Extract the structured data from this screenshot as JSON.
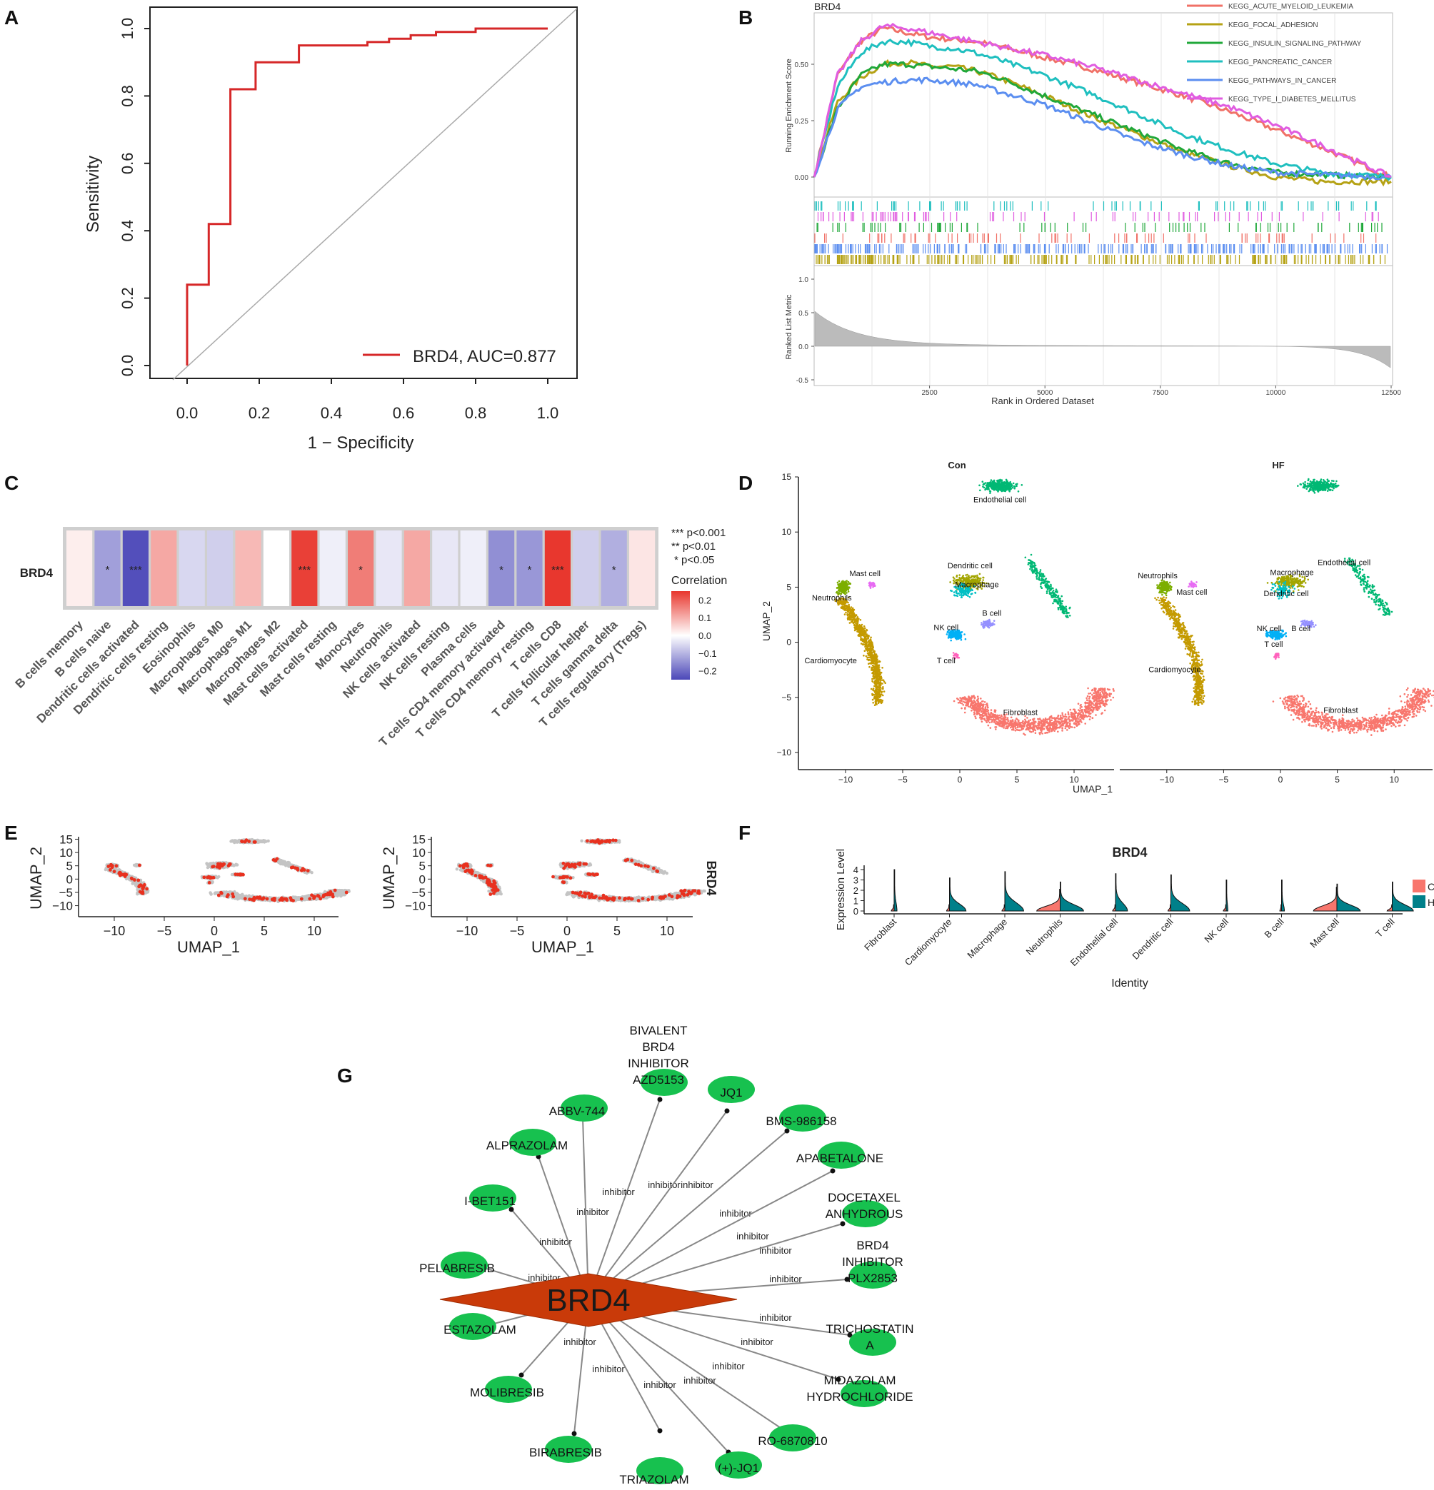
{
  "panels": {
    "A": "A",
    "B": "B",
    "C": "C",
    "D": "D",
    "E": "E",
    "F": "F",
    "G": "G"
  },
  "chart_data": [
    {
      "id": "A",
      "type": "line",
      "xlabel": "1 − Specificity",
      "ylabel": "Sensitivity",
      "xlim": [
        0,
        1
      ],
      "ylim": [
        0,
        1
      ],
      "xticks": [
        "0.0",
        "0.2",
        "0.4",
        "0.6",
        "0.8",
        "1.0"
      ],
      "yticks": [
        "0.0",
        "0.2",
        "0.4",
        "0.6",
        "0.8",
        "1.0"
      ],
      "legend": "BRD4, AUC=0.877",
      "legend_position": "bottom-right",
      "line_color": "#d62728",
      "x": [
        0,
        0,
        0.06,
        0.06,
        0.12,
        0.12,
        0.19,
        0.19,
        0.31,
        0.31,
        0.4,
        0.4,
        0.5,
        0.5,
        0.56,
        0.56,
        0.62,
        0.62,
        0.69,
        0.69,
        0.8,
        0.8,
        1.0
      ],
      "y": [
        0,
        0.24,
        0.24,
        0.42,
        0.42,
        0.82,
        0.82,
        0.9,
        0.9,
        0.95,
        0.95,
        0.95,
        0.95,
        0.96,
        0.96,
        0.97,
        0.97,
        0.98,
        0.98,
        0.99,
        0.99,
        1.0,
        1.0
      ]
    },
    {
      "id": "B",
      "type": "line",
      "title": "BRD4",
      "xlabel": "Rank in Ordered Dataset",
      "ylabel": "Running Enrichment Score",
      "ylabel2": "Ranked List Metric",
      "xlim": [
        0,
        12500
      ],
      "ylim": [
        -0.02,
        0.7
      ],
      "xticks": [
        "2500",
        "5000",
        "7500",
        "10000",
        "12500"
      ],
      "yticks": [
        "0.00",
        "0.25",
        "0.50"
      ],
      "yticks2": [
        "-0.5",
        "0.0",
        "0.5",
        "1.0"
      ],
      "x": [
        0,
        500,
        1000,
        1500,
        2000,
        2500,
        3000,
        3500,
        4000,
        5000,
        6000,
        7000,
        8000,
        9000,
        10000,
        11000,
        12500
      ],
      "series": [
        {
          "name": "KEGG_ACUTE_MYELOID_LEUKEMIA",
          "color": "#f07167",
          "values": [
            0.0,
            0.45,
            0.6,
            0.66,
            0.64,
            0.62,
            0.61,
            0.6,
            0.58,
            0.53,
            0.48,
            0.42,
            0.36,
            0.29,
            0.21,
            0.13,
            0.0
          ]
        },
        {
          "name": "KEGG_FOCAL_ADHESION",
          "color": "#b5a215",
          "values": [
            0.0,
            0.33,
            0.44,
            0.5,
            0.51,
            0.49,
            0.49,
            0.47,
            0.44,
            0.36,
            0.27,
            0.19,
            0.11,
            0.05,
            0.0,
            -0.02,
            -0.02
          ]
        },
        {
          "name": "KEGG_INSULIN_SIGNALING_PATHWAY",
          "color": "#20a83a",
          "values": [
            0.0,
            0.3,
            0.45,
            0.5,
            0.5,
            0.49,
            0.48,
            0.47,
            0.44,
            0.36,
            0.28,
            0.2,
            0.12,
            0.06,
            0.02,
            0.01,
            0.0
          ]
        },
        {
          "name": "KEGG_PANCREATIC_CANCER",
          "color": "#1fbfbf",
          "values": [
            0.0,
            0.4,
            0.55,
            0.6,
            0.6,
            0.58,
            0.57,
            0.55,
            0.52,
            0.45,
            0.37,
            0.28,
            0.19,
            0.12,
            0.06,
            0.02,
            0.0
          ]
        },
        {
          "name": "KEGG_PATHWAYS_IN_CANCER",
          "color": "#5b8ef0",
          "values": [
            0.0,
            0.3,
            0.4,
            0.42,
            0.43,
            0.43,
            0.42,
            0.41,
            0.38,
            0.32,
            0.24,
            0.16,
            0.1,
            0.05,
            0.02,
            0.01,
            0.0
          ]
        },
        {
          "name": "KEGG_TYPE_I_DIABETES_MELLITUS",
          "color": "#e05ce0",
          "values": [
            0.0,
            0.45,
            0.6,
            0.67,
            0.66,
            0.64,
            0.62,
            0.6,
            0.58,
            0.54,
            0.49,
            0.43,
            0.37,
            0.31,
            0.23,
            0.14,
            0.0
          ]
        }
      ]
    },
    {
      "id": "C",
      "type": "heatmap",
      "row": "BRD4",
      "categories": [
        "B cells memory",
        "B cells naive",
        "Dendritic cells activated",
        "Dendritic cells resting",
        "Eosinophils",
        "Macrophages M0",
        "Macrophages M1",
        "Macrophages M2",
        "Mast cells activated",
        "Mast cells resting",
        "Monocytes",
        "Neutrophils",
        "NK cells activated",
        "NK cells resting",
        "Plasma cells",
        "T cells CD4 memory activated",
        "T cells CD4 memory resting",
        "T cells CD8",
        "T cells follicular helper",
        "T cells gamma delta",
        "T cells regulatory (Tregs)"
      ],
      "values": [
        0.02,
        -0.12,
        -0.22,
        0.1,
        -0.05,
        -0.06,
        0.08,
        0.0,
        0.22,
        -0.02,
        0.15,
        -0.03,
        0.1,
        -0.03,
        -0.02,
        -0.14,
        -0.13,
        0.23,
        -0.06,
        -0.1,
        0.03
      ],
      "significance": [
        "",
        "*",
        "***",
        "",
        "",
        "",
        "",
        "",
        "***",
        "",
        "*",
        "",
        "",
        "",
        "",
        "*",
        "*",
        "***",
        "",
        "*",
        ""
      ],
      "legend_title": "Correlation",
      "legend_ticks": [
        "0.2",
        "0.1",
        "0.0",
        "−0.1",
        "−0.2"
      ],
      "sig_legend": [
        "***  p<0.001",
        "**  p<0.01",
        "*  p<0.05"
      ]
    },
    {
      "id": "D",
      "type": "scatter",
      "facets": [
        "Con",
        "HF"
      ],
      "xlabel": "UMAP_1",
      "ylabel": "UMAP_2",
      "xticks": [
        "−10",
        "−5",
        "0",
        "5",
        "10"
      ],
      "yticks": [
        "−10",
        "−5",
        "0",
        "5",
        "10",
        "15"
      ],
      "cell_labels_con": [
        "Endothelial cell",
        "Mast cell",
        "Dendritic cell",
        "Macrophage",
        "Neutrophils",
        "NK cell",
        "B cell",
        "T cell",
        "Cardiomyocyte",
        "Fibroblast"
      ],
      "cell_labels_hf": [
        "Neutrophils",
        "Mast cell",
        "Macrophage",
        "Dendritic cell",
        "Endothelial cell",
        "NK cell",
        "B cell",
        "T cell",
        "Cardiomyocyte",
        "Fibroblast"
      ]
    },
    {
      "id": "E",
      "type": "scatter",
      "xlabel": "UMAP_1",
      "ylabel": "UMAP_2",
      "xticks": [
        "−10",
        "−5",
        "0",
        "5",
        "10"
      ],
      "yticks": [
        "−10",
        "−5",
        "0",
        "5",
        "10",
        "15"
      ],
      "side_label": "BRD4"
    },
    {
      "id": "F",
      "type": "bar",
      "title": "BRD4",
      "xlabel": "Identity",
      "ylabel": "Expression Level",
      "yticks": [
        "0",
        "1",
        "2",
        "3",
        "4"
      ],
      "categories": [
        "Fibroblast",
        "Cardiomyocyte",
        "Macrophage",
        "Neutrophils",
        "Endothelial cell",
        "Dendritic cell",
        "NK cell",
        "B cell",
        "Mast cell",
        "T cell"
      ],
      "legend": [
        "C",
        "H"
      ],
      "legend_colors": [
        "#f8766d",
        "#00808a"
      ]
    },
    {
      "id": "G",
      "type": "diagram",
      "center": "BRD4",
      "edge_label": "inhibitor",
      "nodes": [
        "BIVALENT BRD4 INHIBITOR AZD5153",
        "JQ1",
        "BMS-986158",
        "APABETALONE",
        "DOCETAXEL ANHYDROUS",
        "BRD4 INHIBITOR PLX2853",
        "TRICHOSTATIN A",
        "MIDAZOLAM HYDROCHLORIDE",
        "RO-6870810",
        "(+)-JQ1",
        "TRIAZOLAM",
        "BIRABRESIB",
        "MOLIBRESIB",
        "ESTAZOLAM",
        "PELABRESIB",
        "I-BET151",
        "ALPRAZOLAM",
        "ABBV-744"
      ]
    }
  ]
}
